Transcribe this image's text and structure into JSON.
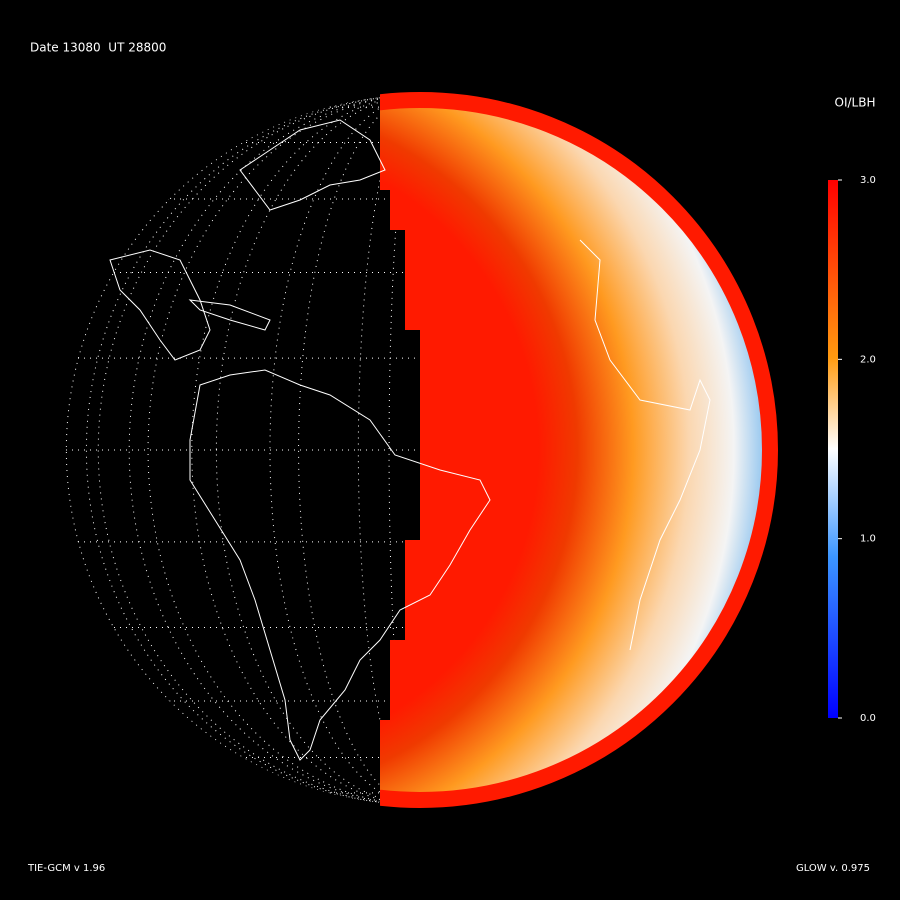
{
  "header": {
    "date": "Date 13080  UT 28800"
  },
  "colorbar": {
    "title": "OI/LBH",
    "range": [
      0,
      3
    ],
    "ticks": [
      {
        "value": 3,
        "label": "3.0"
      },
      {
        "value": 2,
        "label": "2.0"
      },
      {
        "value": 1,
        "label": "1.0"
      },
      {
        "value": 0,
        "label": "0.0"
      }
    ]
  },
  "footer": {
    "left": "TIE-GCM v 1.96",
    "right": "GLOW v. 0.975"
  }
}
